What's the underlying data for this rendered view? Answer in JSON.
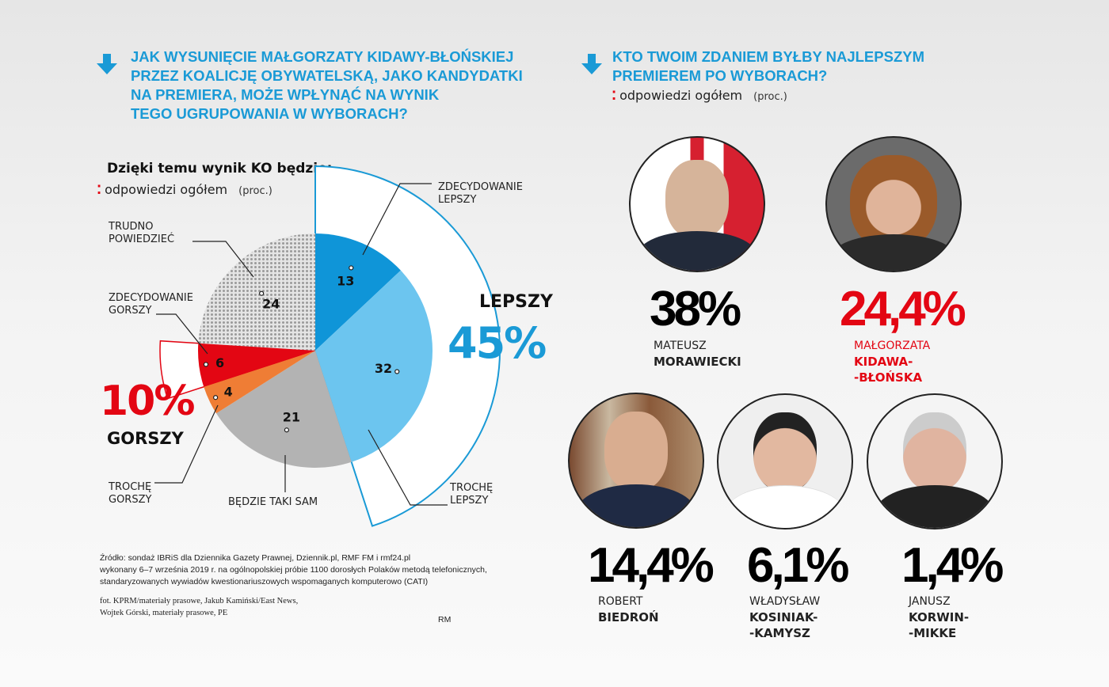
{
  "left": {
    "title_lines": [
      "Jak wysunięcie Małgorzaty Kidawy-Błońskiej",
      "przez Koalicję Obywatelską, jako kandydatki",
      "na premiera, może wpłynąć na wynik",
      "tego ugrupowania w wyborach?"
    ],
    "chart_heading": "Dzięki temu wynik KO będzie:",
    "subtitle": "odpowiedzi ogółem",
    "unit": "(proc.)"
  },
  "chart_data": {
    "type": "pie",
    "title": "Dzięki temu wynik KO będzie:",
    "start": "12 o'clock, clockwise",
    "slices": [
      {
        "label": [
          "ZDECYDOWANIE",
          "LEPSZY"
        ],
        "value": 13,
        "color": "#0f95d8"
      },
      {
        "label": [
          "TROCHĘ",
          "LEPSZY"
        ],
        "value": 32,
        "color": "#6cc5ef"
      },
      {
        "label": [
          "BĘDZIE TAKI SAM"
        ],
        "value": 21,
        "color": "#b3b3b3"
      },
      {
        "label": [
          "TROCHĘ",
          "GORSZY"
        ],
        "value": 4,
        "color": "#ef7d35"
      },
      {
        "label": [
          "ZDECYDOWANIE",
          "GORSZY"
        ],
        "value": 6,
        "color": "#e30613"
      },
      {
        "label": [
          "TRUDNO",
          "POWIEDZIEĆ"
        ],
        "value": 24,
        "color": "#cfcfcf",
        "pattern": "dotted"
      }
    ],
    "groups": [
      {
        "label": "LEPSZY",
        "value": "45%",
        "color": "#1a9ad6"
      },
      {
        "label": "GORSZY",
        "value": "10%",
        "color": "#e30613"
      }
    ]
  },
  "right": {
    "title_lines": [
      "Kto twoim zdaniem byłby najlepszym",
      "premierem po wyborach?"
    ],
    "subtitle": "odpowiedzi ogółem",
    "unit": "(proc.)",
    "candidates": [
      {
        "pct": "38%",
        "first": "MATEUSZ",
        "last": [
          "MORAWIECKI"
        ],
        "color": "#111111"
      },
      {
        "pct": "24,4%",
        "first": "MAŁGORZATA",
        "last": [
          "KIDAWA-",
          "-BŁOŃSKA"
        ],
        "color": "#e30613"
      },
      {
        "pct": "14,4%",
        "first": "ROBERT",
        "last": [
          "BIEDROŃ"
        ],
        "color": "#111111"
      },
      {
        "pct": "6,1%",
        "first": "WŁADYSŁAW",
        "last": [
          "KOSINIAK-",
          "-KAMYSZ"
        ],
        "color": "#111111"
      },
      {
        "pct": "1,4%",
        "first": "JANUSZ",
        "last": [
          "KORWIN-",
          "-MIKKE"
        ],
        "color": "#111111"
      }
    ]
  },
  "source": {
    "lines": [
      "Źródło: sondaż IBRiS dla Dziennika Gazety Prawnej, Dziennik.pl, RMF FM i rmf24.pl",
      "wykonany 6–7 września 2019 r. na ogólnopolskiej próbie 1100 dorosłych Polaków metodą telefonicznych,",
      "standaryzowanych wywiadów kwestionariuszowych wspomaganych komputerowo (CATI)"
    ],
    "photo_lines": [
      "fot.  KPRM/materiały prasowe, Jakub Kamiński/East News,",
      "Wojtek Górski, materiały prasowe, PE"
    ],
    "author": "RM"
  }
}
